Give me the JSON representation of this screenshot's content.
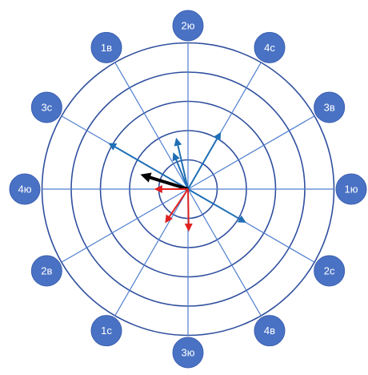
{
  "colors": {
    "ring": "#2f4f9e",
    "spoke": "#4f7fcf",
    "node_fill": "#4a72c4",
    "node_stroke": "#3b60b0",
    "node_text": "#ffffff",
    "arrow_blue": "#1f6fb5",
    "arrow_red": "#e02020",
    "arrow_black": "#000000"
  },
  "rings": 5,
  "labels": [
    {
      "id": "label-2yu-top",
      "text": "2ю",
      "angle_deg": 90
    },
    {
      "id": "label-4s-topright",
      "text": "4с",
      "angle_deg": 60
    },
    {
      "id": "label-3v-right",
      "text": "3в",
      "angle_deg": 30
    },
    {
      "id": "label-1yu-right",
      "text": "1ю",
      "angle_deg": 0
    },
    {
      "id": "label-2s-right",
      "text": "2с",
      "angle_deg": -30
    },
    {
      "id": "label-4v-bottomright",
      "text": "4в",
      "angle_deg": -60
    },
    {
      "id": "label-3yu-bottom",
      "text": "3ю",
      "angle_deg": -90
    },
    {
      "id": "label-1s-bottomleft",
      "text": "1с",
      "angle_deg": -120
    },
    {
      "id": "label-2v-left",
      "text": "2в",
      "angle_deg": -150
    },
    {
      "id": "label-4yu-left",
      "text": "4ю",
      "angle_deg": 180
    },
    {
      "id": "label-3s-left",
      "text": "3с",
      "angle_deg": 150
    },
    {
      "id": "label-1v-topleft",
      "text": "1в",
      "angle_deg": 120
    }
  ],
  "vectors": [
    {
      "name": "vector-blue-3s",
      "color": "arrow_blue",
      "angle_deg": 150,
      "magnitude": 3.1,
      "width": 2
    },
    {
      "name": "vector-blue-2s",
      "color": "arrow_blue",
      "angle_deg": -30,
      "magnitude": 2.25,
      "width": 2
    },
    {
      "name": "vector-blue-4s",
      "color": "arrow_blue",
      "angle_deg": 60,
      "magnitude": 2.2,
      "width": 2
    },
    {
      "name": "vector-blue-upleft",
      "color": "arrow_blue",
      "angle_deg": 103,
      "magnitude": 1.75,
      "width": 2
    },
    {
      "name": "vector-blue-short-up",
      "color": "arrow_blue",
      "angle_deg": 112,
      "magnitude": 1.3,
      "width": 2
    },
    {
      "name": "vector-black-resultant",
      "color": "arrow_black",
      "angle_deg": 163,
      "magnitude": 1.6,
      "width": 4
    },
    {
      "name": "vector-red-down",
      "color": "arrow_red",
      "angle_deg": -89,
      "magnitude": 1.4,
      "width": 2
    },
    {
      "name": "vector-red-downleft",
      "color": "arrow_red",
      "angle_deg": -124,
      "magnitude": 1.35,
      "width": 2
    },
    {
      "name": "vector-red-left",
      "color": "arrow_red",
      "angle_deg": 180,
      "magnitude": 1.1,
      "width": 2
    }
  ]
}
